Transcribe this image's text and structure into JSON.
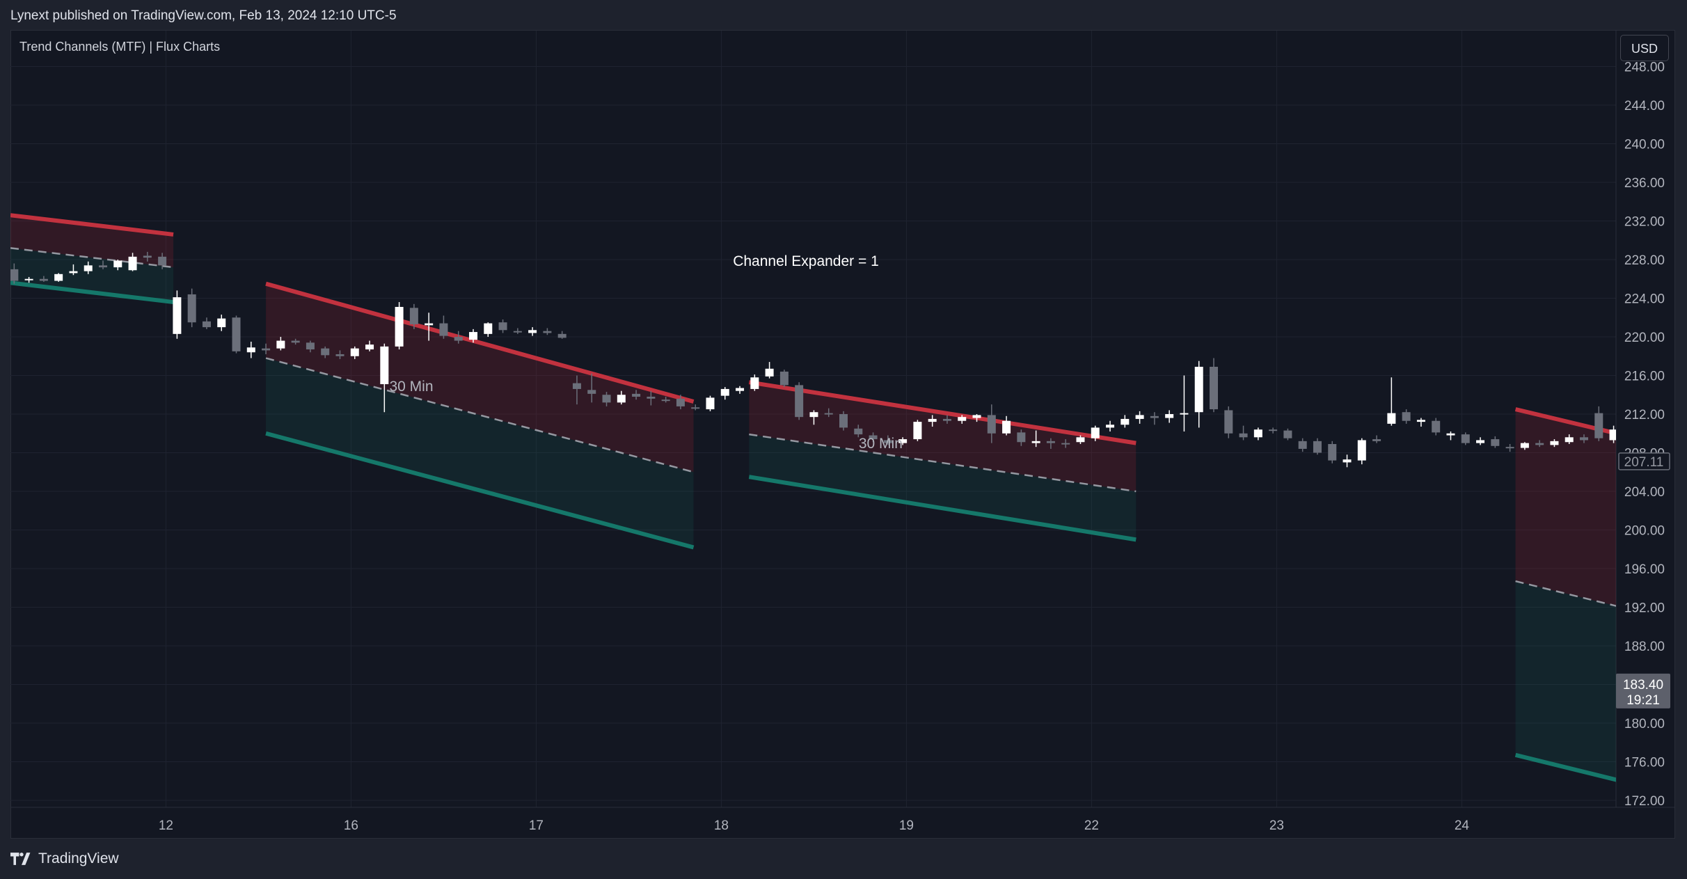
{
  "header": {
    "publisher_line": "Lynext published on TradingView.com, Feb 13, 2024 12:10 UTC-5"
  },
  "indicator": {
    "title": "Trend Channels (MTF) | Flux Charts"
  },
  "currency_button": "USD",
  "footer": {
    "brand": "TradingView",
    "logo_icon": "tradingview-logo-icon"
  },
  "colors": {
    "background": "#131722",
    "upper_line": "#c2323f",
    "lower_line": "#15786a",
    "upper_fill": "rgba(140,32,48,0.25)",
    "lower_fill": "rgba(21,93,84,0.22)",
    "bull_candle": "#ffffff",
    "bear_candle": "#6b6f7a",
    "mid_dash": "#9598a1"
  },
  "chart_data": {
    "type": "candlestick",
    "title": "",
    "annotation": "Channel Expander = 1",
    "x_tick_labels": [
      "12",
      "16",
      "17",
      "18",
      "19",
      "22",
      "23",
      "24"
    ],
    "y_tick_labels": [
      "248.00",
      "244.00",
      "240.00",
      "236.00",
      "232.00",
      "228.00",
      "224.00",
      "220.00",
      "216.00",
      "212.00",
      "208.00",
      "204.00",
      "200.00",
      "196.00",
      "192.00",
      "188.00",
      "184.00",
      "180.00",
      "176.00",
      "172.00"
    ],
    "ylim": [
      171,
      249
    ],
    "y_ticks": [
      248,
      244,
      240,
      236,
      232,
      228,
      224,
      220,
      216,
      212,
      208,
      204,
      200,
      196,
      192,
      188,
      184,
      180,
      176,
      172
    ],
    "price_labels": [
      {
        "value": 207.11,
        "text": "207.11",
        "style": "outline"
      },
      {
        "value": 183.4,
        "text": "183.40",
        "sub": "19:21",
        "style": "filled"
      }
    ],
    "channels": [
      {
        "label": "",
        "x0": 0.0,
        "x1": 0.88,
        "upper": [
          232.6,
          230.6
        ],
        "mid": [
          229.2,
          227.2
        ],
        "lower": [
          225.6,
          223.6
        ]
      },
      {
        "label": "30 Min",
        "x0": 1.38,
        "x1": 3.69,
        "upper": [
          225.5,
          213.3
        ],
        "mid": [
          217.8,
          206.0
        ],
        "lower": [
          210.0,
          198.2
        ]
      },
      {
        "label": "30 Min",
        "x0": 3.99,
        "x1": 6.08,
        "upper": [
          215.3,
          209.0
        ],
        "mid": [
          209.9,
          204.0
        ],
        "lower": [
          205.5,
          199.0
        ]
      },
      {
        "label": "",
        "x0": 8.13,
        "x1": 8.85,
        "upper": [
          212.5,
          209.2
        ],
        "mid": [
          194.7,
          191.3
        ],
        "lower": [
          176.7,
          173.3
        ]
      }
    ],
    "candles": [
      {
        "x": 0.02,
        "o": 227.0,
        "h": 227.6,
        "l": 225.5,
        "c": 225.8
      },
      {
        "x": 0.1,
        "o": 225.9,
        "h": 226.2,
        "l": 225.6,
        "c": 226.0
      },
      {
        "x": 0.18,
        "o": 226.0,
        "h": 226.3,
        "l": 225.7,
        "c": 225.8
      },
      {
        "x": 0.26,
        "o": 225.8,
        "h": 226.6,
        "l": 225.7,
        "c": 226.5
      },
      {
        "x": 0.34,
        "o": 226.6,
        "h": 227.5,
        "l": 226.4,
        "c": 226.8
      },
      {
        "x": 0.42,
        "o": 226.8,
        "h": 227.8,
        "l": 226.5,
        "c": 227.4
      },
      {
        "x": 0.5,
        "o": 227.4,
        "h": 227.9,
        "l": 227.0,
        "c": 227.2
      },
      {
        "x": 0.58,
        "o": 227.2,
        "h": 228.0,
        "l": 226.9,
        "c": 227.9
      },
      {
        "x": 0.66,
        "o": 226.9,
        "h": 228.7,
        "l": 226.8,
        "c": 228.3
      },
      {
        "x": 0.74,
        "o": 228.4,
        "h": 228.8,
        "l": 227.8,
        "c": 228.2
      },
      {
        "x": 0.82,
        "o": 228.3,
        "h": 228.7,
        "l": 227.0,
        "c": 227.4
      },
      {
        "x": 0.9,
        "o": 220.3,
        "h": 224.8,
        "l": 219.8,
        "c": 224.1
      },
      {
        "x": 0.98,
        "o": 224.4,
        "h": 225.0,
        "l": 221.0,
        "c": 221.5
      },
      {
        "x": 1.06,
        "o": 221.6,
        "h": 222.0,
        "l": 220.8,
        "c": 221.0
      },
      {
        "x": 1.14,
        "o": 221.0,
        "h": 222.3,
        "l": 220.6,
        "c": 221.9
      },
      {
        "x": 1.22,
        "o": 222.0,
        "h": 222.2,
        "l": 218.3,
        "c": 218.5
      },
      {
        "x": 1.3,
        "o": 218.4,
        "h": 219.5,
        "l": 217.8,
        "c": 218.9
      },
      {
        "x": 1.38,
        "o": 218.8,
        "h": 219.3,
        "l": 218.2,
        "c": 218.6
      },
      {
        "x": 1.46,
        "o": 218.8,
        "h": 220.0,
        "l": 218.6,
        "c": 219.6
      },
      {
        "x": 1.54,
        "o": 219.6,
        "h": 219.8,
        "l": 219.2,
        "c": 219.4
      },
      {
        "x": 1.62,
        "o": 219.4,
        "h": 219.6,
        "l": 218.4,
        "c": 218.7
      },
      {
        "x": 1.7,
        "o": 218.8,
        "h": 219.0,
        "l": 217.8,
        "c": 218.1
      },
      {
        "x": 1.78,
        "o": 218.2,
        "h": 218.6,
        "l": 217.7,
        "c": 218.0
      },
      {
        "x": 1.86,
        "o": 218.0,
        "h": 219.0,
        "l": 217.7,
        "c": 218.8
      },
      {
        "x": 1.94,
        "o": 218.7,
        "h": 219.6,
        "l": 218.5,
        "c": 219.2
      },
      {
        "x": 2.02,
        "o": 215.1,
        "h": 219.3,
        "l": 212.2,
        "c": 219.0
      },
      {
        "x": 2.1,
        "o": 219.0,
        "h": 223.6,
        "l": 218.7,
        "c": 223.1
      },
      {
        "x": 2.18,
        "o": 223.0,
        "h": 223.4,
        "l": 220.8,
        "c": 221.3
      },
      {
        "x": 2.26,
        "o": 221.2,
        "h": 222.5,
        "l": 219.6,
        "c": 221.4
      },
      {
        "x": 2.34,
        "o": 221.4,
        "h": 222.2,
        "l": 219.8,
        "c": 220.1
      },
      {
        "x": 2.42,
        "o": 220.0,
        "h": 220.6,
        "l": 219.3,
        "c": 219.6
      },
      {
        "x": 2.5,
        "o": 219.7,
        "h": 220.8,
        "l": 219.4,
        "c": 220.5
      },
      {
        "x": 2.58,
        "o": 220.3,
        "h": 221.5,
        "l": 220.0,
        "c": 221.4
      },
      {
        "x": 2.66,
        "o": 221.5,
        "h": 221.8,
        "l": 220.4,
        "c": 220.7
      },
      {
        "x": 2.74,
        "o": 220.6,
        "h": 220.9,
        "l": 220.3,
        "c": 220.5
      },
      {
        "x": 2.82,
        "o": 220.4,
        "h": 221.0,
        "l": 220.1,
        "c": 220.7
      },
      {
        "x": 2.9,
        "o": 220.6,
        "h": 220.9,
        "l": 220.2,
        "c": 220.4
      },
      {
        "x": 2.98,
        "o": 220.3,
        "h": 220.6,
        "l": 219.8,
        "c": 219.9
      },
      {
        "x": 3.06,
        "o": 215.2,
        "h": 216.0,
        "l": 213.0,
        "c": 214.6
      },
      {
        "x": 3.14,
        "o": 214.5,
        "h": 216.2,
        "l": 213.2,
        "c": 214.1
      },
      {
        "x": 3.22,
        "o": 214.0,
        "h": 214.3,
        "l": 212.8,
        "c": 213.2
      },
      {
        "x": 3.3,
        "o": 213.2,
        "h": 214.4,
        "l": 213.0,
        "c": 214.0
      },
      {
        "x": 3.38,
        "o": 214.1,
        "h": 214.5,
        "l": 213.5,
        "c": 213.8
      },
      {
        "x": 3.46,
        "o": 213.8,
        "h": 214.4,
        "l": 212.9,
        "c": 213.6
      },
      {
        "x": 3.54,
        "o": 213.5,
        "h": 213.8,
        "l": 213.2,
        "c": 213.4
      },
      {
        "x": 3.62,
        "o": 213.6,
        "h": 214.0,
        "l": 212.5,
        "c": 212.8
      },
      {
        "x": 3.7,
        "o": 212.7,
        "h": 213.0,
        "l": 212.4,
        "c": 212.6
      },
      {
        "x": 3.78,
        "o": 212.5,
        "h": 213.9,
        "l": 212.3,
        "c": 213.7
      },
      {
        "x": 3.86,
        "o": 213.9,
        "h": 214.8,
        "l": 213.5,
        "c": 214.6
      },
      {
        "x": 3.94,
        "o": 214.4,
        "h": 214.9,
        "l": 214.1,
        "c": 214.7
      },
      {
        "x": 4.02,
        "o": 214.6,
        "h": 216.1,
        "l": 214.4,
        "c": 215.8
      },
      {
        "x": 4.1,
        "o": 215.9,
        "h": 217.4,
        "l": 215.7,
        "c": 216.7
      },
      {
        "x": 4.18,
        "o": 216.4,
        "h": 216.6,
        "l": 214.8,
        "c": 215.0
      },
      {
        "x": 4.26,
        "o": 215.0,
        "h": 215.3,
        "l": 211.4,
        "c": 211.7
      },
      {
        "x": 4.34,
        "o": 211.7,
        "h": 212.4,
        "l": 210.9,
        "c": 212.2
      },
      {
        "x": 4.42,
        "o": 212.1,
        "h": 212.6,
        "l": 211.7,
        "c": 212.0
      },
      {
        "x": 4.5,
        "o": 212.0,
        "h": 212.3,
        "l": 210.3,
        "c": 210.6
      },
      {
        "x": 4.58,
        "o": 210.5,
        "h": 210.9,
        "l": 209.6,
        "c": 209.9
      },
      {
        "x": 4.66,
        "o": 209.8,
        "h": 210.1,
        "l": 209.1,
        "c": 209.4
      },
      {
        "x": 4.74,
        "o": 209.3,
        "h": 209.8,
        "l": 208.8,
        "c": 209.0
      },
      {
        "x": 4.82,
        "o": 209.0,
        "h": 209.6,
        "l": 208.8,
        "c": 209.4
      },
      {
        "x": 4.9,
        "o": 209.4,
        "h": 211.4,
        "l": 209.2,
        "c": 211.2
      },
      {
        "x": 4.98,
        "o": 211.2,
        "h": 211.9,
        "l": 210.7,
        "c": 211.5
      },
      {
        "x": 5.06,
        "o": 211.5,
        "h": 211.9,
        "l": 211.0,
        "c": 211.3
      },
      {
        "x": 5.14,
        "o": 211.3,
        "h": 211.9,
        "l": 211.0,
        "c": 211.7
      },
      {
        "x": 5.22,
        "o": 211.6,
        "h": 212.0,
        "l": 211.2,
        "c": 211.9
      },
      {
        "x": 5.3,
        "o": 211.9,
        "h": 213.0,
        "l": 209.0,
        "c": 210.0
      },
      {
        "x": 5.38,
        "o": 210.0,
        "h": 211.8,
        "l": 209.8,
        "c": 211.3
      },
      {
        "x": 5.46,
        "o": 210.1,
        "h": 210.4,
        "l": 208.7,
        "c": 209.1
      },
      {
        "x": 5.54,
        "o": 209.0,
        "h": 210.3,
        "l": 208.6,
        "c": 209.2
      },
      {
        "x": 5.62,
        "o": 209.2,
        "h": 209.5,
        "l": 208.4,
        "c": 209.0
      },
      {
        "x": 5.7,
        "o": 209.0,
        "h": 209.4,
        "l": 208.5,
        "c": 208.9
      },
      {
        "x": 5.78,
        "o": 209.1,
        "h": 209.8,
        "l": 208.9,
        "c": 209.6
      },
      {
        "x": 5.86,
        "o": 209.5,
        "h": 210.8,
        "l": 209.2,
        "c": 210.6
      },
      {
        "x": 5.94,
        "o": 210.6,
        "h": 211.3,
        "l": 210.2,
        "c": 210.9
      },
      {
        "x": 6.02,
        "o": 210.9,
        "h": 211.9,
        "l": 210.6,
        "c": 211.5
      },
      {
        "x": 6.1,
        "o": 211.5,
        "h": 212.3,
        "l": 211.0,
        "c": 211.9
      },
      {
        "x": 6.18,
        "o": 211.8,
        "h": 212.2,
        "l": 210.9,
        "c": 211.6
      },
      {
        "x": 6.26,
        "o": 211.6,
        "h": 212.4,
        "l": 211.1,
        "c": 212.0
      },
      {
        "x": 6.34,
        "o": 212.0,
        "h": 216.0,
        "l": 210.2,
        "c": 212.1
      },
      {
        "x": 6.42,
        "o": 212.2,
        "h": 217.5,
        "l": 210.6,
        "c": 216.9
      },
      {
        "x": 6.5,
        "o": 216.9,
        "h": 217.8,
        "l": 212.2,
        "c": 212.5
      },
      {
        "x": 6.58,
        "o": 212.4,
        "h": 212.8,
        "l": 209.5,
        "c": 210.0
      },
      {
        "x": 6.66,
        "o": 210.0,
        "h": 210.8,
        "l": 209.3,
        "c": 209.6
      },
      {
        "x": 6.74,
        "o": 209.6,
        "h": 210.6,
        "l": 209.3,
        "c": 210.4
      },
      {
        "x": 6.82,
        "o": 210.4,
        "h": 210.6,
        "l": 210.0,
        "c": 210.3
      },
      {
        "x": 6.9,
        "o": 210.3,
        "h": 210.5,
        "l": 209.3,
        "c": 209.5
      },
      {
        "x": 6.98,
        "o": 209.2,
        "h": 209.5,
        "l": 208.1,
        "c": 208.4
      },
      {
        "x": 7.06,
        "o": 209.2,
        "h": 209.5,
        "l": 207.8,
        "c": 208.0
      },
      {
        "x": 7.14,
        "o": 208.9,
        "h": 209.2,
        "l": 206.9,
        "c": 207.2
      },
      {
        "x": 7.22,
        "o": 207.0,
        "h": 207.8,
        "l": 206.5,
        "c": 207.3
      },
      {
        "x": 7.3,
        "o": 207.2,
        "h": 209.5,
        "l": 206.8,
        "c": 209.3
      },
      {
        "x": 7.38,
        "o": 209.4,
        "h": 209.8,
        "l": 209.0,
        "c": 209.2
      },
      {
        "x": 7.46,
        "o": 211.0,
        "h": 215.8,
        "l": 210.8,
        "c": 212.1
      },
      {
        "x": 7.54,
        "o": 212.2,
        "h": 212.5,
        "l": 211.0,
        "c": 211.3
      },
      {
        "x": 7.62,
        "o": 211.2,
        "h": 211.6,
        "l": 210.7,
        "c": 211.4
      },
      {
        "x": 7.7,
        "o": 211.3,
        "h": 211.6,
        "l": 209.8,
        "c": 210.1
      },
      {
        "x": 7.78,
        "o": 209.8,
        "h": 210.2,
        "l": 209.3,
        "c": 210.0
      },
      {
        "x": 7.86,
        "o": 209.9,
        "h": 210.1,
        "l": 208.8,
        "c": 209.0
      },
      {
        "x": 7.94,
        "o": 209.0,
        "h": 209.6,
        "l": 208.8,
        "c": 209.3
      },
      {
        "x": 8.02,
        "o": 209.4,
        "h": 209.7,
        "l": 208.5,
        "c": 208.7
      },
      {
        "x": 8.1,
        "o": 208.6,
        "h": 208.9,
        "l": 208.1,
        "c": 208.5
      },
      {
        "x": 8.18,
        "o": 208.5,
        "h": 209.1,
        "l": 208.3,
        "c": 209.0
      },
      {
        "x": 8.26,
        "o": 209.0,
        "h": 209.3,
        "l": 208.6,
        "c": 208.8
      },
      {
        "x": 8.34,
        "o": 208.8,
        "h": 209.4,
        "l": 208.6,
        "c": 209.2
      },
      {
        "x": 8.42,
        "o": 209.1,
        "h": 209.9,
        "l": 208.9,
        "c": 209.6
      },
      {
        "x": 8.5,
        "o": 209.6,
        "h": 209.9,
        "l": 209.0,
        "c": 209.3
      },
      {
        "x": 8.58,
        "o": 212.1,
        "h": 212.8,
        "l": 209.2,
        "c": 209.5
      },
      {
        "x": 8.66,
        "o": 209.3,
        "h": 210.8,
        "l": 209.0,
        "c": 210.4
      },
      {
        "x": 8.74,
        "o": 210.4,
        "h": 212.7,
        "l": 210.1,
        "c": 212.1
      },
      {
        "x": 8.82,
        "o": 212.0,
        "h": 212.3,
        "l": 210.8,
        "c": 211.1
      },
      {
        "x": 8.9,
        "o": 211.1,
        "h": 211.6,
        "l": 210.6,
        "c": 211.3
      },
      {
        "x": 8.98,
        "o": 211.3,
        "h": 211.9,
        "l": 211.0,
        "c": 211.6
      },
      {
        "x": 9.06,
        "o": 211.5,
        "h": 211.8,
        "l": 210.7,
        "c": 211.0
      },
      {
        "x": 9.14,
        "o": 210.9,
        "h": 211.2,
        "l": 209.4,
        "c": 209.6
      },
      {
        "x": 9.22,
        "o": 209.6,
        "h": 209.9,
        "l": 208.5,
        "c": 208.8
      },
      {
        "x": 9.3,
        "o": 208.8,
        "h": 209.2,
        "l": 208.2,
        "c": 208.5
      },
      {
        "x": 9.38,
        "o": 208.4,
        "h": 208.7,
        "l": 207.2,
        "c": 207.4
      }
    ]
  }
}
